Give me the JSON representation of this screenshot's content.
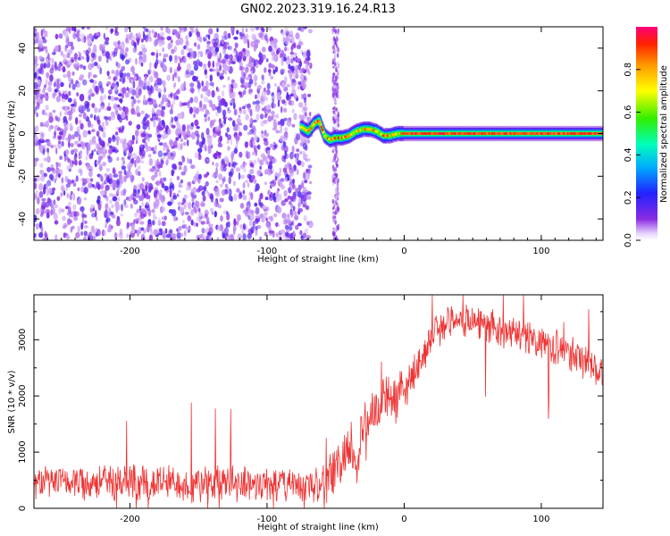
{
  "figure": {
    "title": "GN02.2023.319.16.24.R13"
  },
  "chart_data": [
    {
      "type": "heatmap",
      "xlabel": "Height of straight line (km)",
      "ylabel": "Frequency (Hz)",
      "xlim": [
        -270,
        145
      ],
      "ylim": [
        -50,
        50
      ],
      "x_ticks": [
        -200,
        -100,
        0,
        100
      ],
      "y_ticks": [
        -40,
        -20,
        0,
        20,
        40
      ],
      "colorbar": {
        "label": "Normalized spectral amplitude",
        "range": [
          0,
          1
        ],
        "ticks": [
          0.0,
          0.2,
          0.4,
          0.6,
          0.8
        ]
      },
      "regions": [
        {
          "x_range": [
            -270,
            -72
          ],
          "pattern": "broadband noise",
          "amplitude": [
            0.0,
            0.35
          ]
        },
        {
          "x_range": [
            -52,
            -48
          ],
          "pattern": "vertical noise band",
          "amplitude": [
            0.0,
            0.2
          ]
        },
        {
          "x_range": [
            -75,
            0
          ],
          "pattern": "signal near 0 Hz, wavy",
          "amplitude": [
            0.3,
            1.0
          ]
        },
        {
          "x_range": [
            0,
            145
          ],
          "pattern": "steady signal at 0 Hz",
          "amplitude": [
            0.6,
            1.0
          ]
        }
      ],
      "signal_frequency_track": [
        [
          -75,
          3
        ],
        [
          -70,
          1
        ],
        [
          -65,
          5
        ],
        [
          -62,
          6
        ],
        [
          -58,
          -1
        ],
        [
          -54,
          -3
        ],
        [
          -50,
          -2
        ],
        [
          -45,
          -2
        ],
        [
          -40,
          -1
        ],
        [
          -35,
          1
        ],
        [
          -30,
          2
        ],
        [
          -25,
          2
        ],
        [
          -20,
          1
        ],
        [
          -15,
          -1
        ],
        [
          -10,
          -1
        ],
        [
          -5,
          0
        ],
        [
          0,
          0
        ],
        [
          20,
          0
        ],
        [
          50,
          0
        ],
        [
          100,
          0
        ],
        [
          145,
          0
        ]
      ]
    },
    {
      "type": "line",
      "xlabel": "Height of straight line (km)",
      "ylabel": "SNR (10 * v/v)",
      "xlim": [
        -270,
        145
      ],
      "ylim": [
        0,
        3800
      ],
      "x_ticks": [
        -200,
        -100,
        0,
        100
      ],
      "y_ticks": [
        0,
        1000,
        2000,
        3000
      ],
      "series": [
        {
          "color": "#ee3333",
          "x": [
            -270,
            -250,
            -225,
            -200,
            -175,
            -150,
            -125,
            -100,
            -80,
            -70,
            -60,
            -50,
            -45,
            -40,
            -35,
            -30,
            -25,
            -20,
            -15,
            -10,
            -5,
            0,
            5,
            10,
            15,
            20,
            25,
            30,
            35,
            40,
            45,
            50,
            60,
            70,
            80,
            90,
            100,
            110,
            120,
            130,
            145
          ],
          "y": [
            450,
            480,
            470,
            460,
            450,
            440,
            440,
            430,
            420,
            400,
            450,
            650,
            900,
            1250,
            700,
            1400,
            1650,
            1750,
            1950,
            2050,
            1900,
            2100,
            2300,
            2550,
            2800,
            3050,
            3200,
            3300,
            3350,
            3380,
            3360,
            3340,
            3250,
            3180,
            3100,
            3050,
            2950,
            2850,
            2750,
            2650,
            2450
          ]
        }
      ]
    }
  ]
}
